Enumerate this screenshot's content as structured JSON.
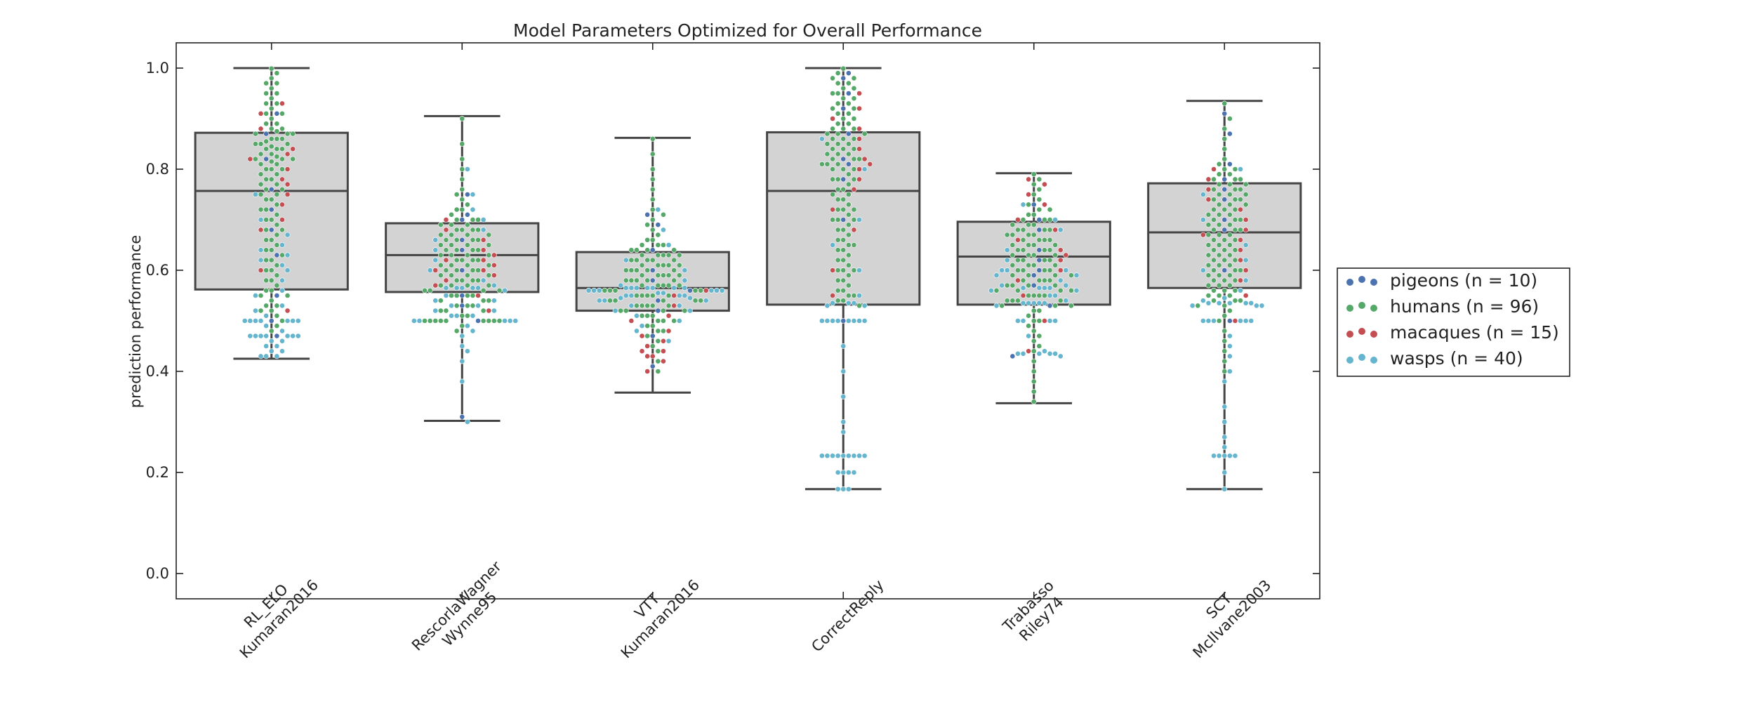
{
  "chart_data": {
    "type": "box",
    "title": "Model Parameters Optimized for Overall Performance",
    "xlabel": "",
    "ylabel": "prediction performance",
    "ylim": [
      -0.05,
      1.05
    ],
    "yticks": [
      "0.0",
      "0.2",
      "0.4",
      "0.6",
      "0.8",
      "1.0"
    ],
    "grid": false,
    "legend_position": "right",
    "categories": [
      [
        "RL_ELO",
        "Kumaran2016"
      ],
      [
        "RescorlaWagner",
        "Wynne95"
      ],
      [
        "VTT",
        "Kumaran2016"
      ],
      [
        "CorrectReply"
      ],
      [
        "Trabasso",
        "Riley74"
      ],
      [
        "SCT",
        "McIlvane2003"
      ]
    ],
    "boxes": [
      {
        "whisker_low": 0.425,
        "q1": 0.562,
        "median": 0.757,
        "q3": 0.872,
        "whisker_high": 1.0
      },
      {
        "whisker_low": 0.302,
        "q1": 0.557,
        "median": 0.63,
        "q3": 0.693,
        "whisker_high": 0.905
      },
      {
        "whisker_low": 0.358,
        "q1": 0.52,
        "median": 0.565,
        "q3": 0.636,
        "whisker_high": 0.862
      },
      {
        "whisker_low": 0.167,
        "q1": 0.532,
        "median": 0.757,
        "q3": 0.873,
        "whisker_high": 1.0
      },
      {
        "whisker_low": 0.337,
        "q1": 0.532,
        "median": 0.627,
        "q3": 0.696,
        "whisker_high": 0.792
      },
      {
        "whisker_low": 0.167,
        "q1": 0.565,
        "median": 0.675,
        "q3": 0.772,
        "whisker_high": 0.935
      }
    ],
    "series": [
      {
        "name": "pigeons (n = 10)",
        "color": "#4c72b0",
        "values": [
          [
            0.91,
            0.87,
            0.82,
            0.76,
            0.72,
            0.68,
            0.63,
            0.55,
            0.5,
            0.47
          ],
          [
            0.75,
            0.71,
            0.7,
            0.66,
            0.64,
            0.6,
            0.55,
            0.53,
            0.5,
            0.31
          ],
          [
            0.71,
            0.69,
            0.64,
            0.6,
            0.58,
            0.56,
            0.54,
            0.52,
            0.47,
            0.41
          ],
          [
            0.99,
            0.98,
            0.95,
            0.92,
            0.87,
            0.82,
            0.81,
            0.78,
            0.7,
            0.5
          ],
          [
            0.73,
            0.7,
            0.68,
            0.64,
            0.62,
            0.6,
            0.59,
            0.57,
            0.53,
            0.43
          ],
          [
            0.91,
            0.87,
            0.81,
            0.78,
            0.76,
            0.74,
            0.7,
            0.68,
            0.6,
            0.5
          ]
        ]
      },
      {
        "name": "humans (n = 96)",
        "color": "#55a868",
        "values": [
          [
            0.999,
            0.99,
            0.98,
            0.97,
            0.96,
            0.95,
            0.94,
            0.93,
            0.92,
            0.91,
            0.9,
            0.89,
            0.88,
            0.875,
            0.87,
            0.86,
            0.855,
            0.85,
            0.845,
            0.84,
            0.83,
            0.825,
            0.82,
            0.815,
            0.81,
            0.8,
            0.79,
            0.78,
            0.77,
            0.76,
            0.75,
            0.74,
            0.73,
            0.72,
            0.71,
            0.7,
            0.69,
            0.68,
            0.67,
            0.66,
            0.65,
            0.64,
            0.63,
            0.62,
            0.61,
            0.6,
            0.59,
            0.58,
            0.57,
            0.56,
            0.55,
            0.54,
            0.53,
            0.52,
            0.51,
            0.5,
            0.49,
            0.48,
            0.97,
            0.95,
            0.93,
            0.91,
            0.89,
            0.87,
            0.86,
            0.85,
            0.84,
            0.83,
            0.82,
            0.81,
            0.8,
            0.78,
            0.76,
            0.75,
            0.74,
            0.72,
            0.7,
            0.68,
            0.66,
            0.64,
            0.62,
            0.6,
            0.58,
            0.56,
            0.55,
            0.53,
            0.52,
            0.88,
            0.87,
            0.86,
            0.85,
            0.84,
            0.82,
            0.8,
            0.79,
            0.77
          ],
          [
            0.9,
            0.85,
            0.82,
            0.8,
            0.78,
            0.76,
            0.75,
            0.74,
            0.73,
            0.72,
            0.71,
            0.7,
            0.7,
            0.69,
            0.69,
            0.68,
            0.68,
            0.67,
            0.67,
            0.66,
            0.66,
            0.65,
            0.65,
            0.64,
            0.64,
            0.63,
            0.63,
            0.62,
            0.62,
            0.61,
            0.61,
            0.6,
            0.6,
            0.59,
            0.59,
            0.58,
            0.58,
            0.57,
            0.57,
            0.56,
            0.56,
            0.55,
            0.55,
            0.54,
            0.54,
            0.53,
            0.53,
            0.52,
            0.52,
            0.51,
            0.5,
            0.5,
            0.5,
            0.5,
            0.5,
            0.5,
            0.5,
            0.5,
            0.49,
            0.48,
            0.72,
            0.7,
            0.69,
            0.68,
            0.67,
            0.66,
            0.65,
            0.64,
            0.63,
            0.62,
            0.61,
            0.6,
            0.59,
            0.58,
            0.57,
            0.56,
            0.55,
            0.54,
            0.53,
            0.52,
            0.51,
            0.5,
            0.68,
            0.67,
            0.66,
            0.65,
            0.64,
            0.63,
            0.62,
            0.61,
            0.6,
            0.59,
            0.58,
            0.57,
            0.56,
            0.55
          ],
          [
            0.86,
            0.83,
            0.8,
            0.78,
            0.76,
            0.74,
            0.72,
            0.71,
            0.7,
            0.69,
            0.68,
            0.67,
            0.66,
            0.65,
            0.65,
            0.64,
            0.64,
            0.63,
            0.63,
            0.62,
            0.62,
            0.61,
            0.61,
            0.6,
            0.6,
            0.59,
            0.59,
            0.58,
            0.58,
            0.57,
            0.57,
            0.56,
            0.56,
            0.55,
            0.55,
            0.54,
            0.54,
            0.53,
            0.53,
            0.52,
            0.52,
            0.51,
            0.51,
            0.5,
            0.5,
            0.49,
            0.49,
            0.48,
            0.48,
            0.47,
            0.46,
            0.45,
            0.44,
            0.42,
            0.4,
            0.66,
            0.65,
            0.64,
            0.63,
            0.62,
            0.61,
            0.6,
            0.59,
            0.58,
            0.57,
            0.56,
            0.55,
            0.54,
            0.53,
            0.52,
            0.51,
            0.5,
            0.64,
            0.63,
            0.62,
            0.61,
            0.6,
            0.59,
            0.58,
            0.57,
            0.56,
            0.55,
            0.54,
            0.53,
            0.52,
            0.63,
            0.62,
            0.61,
            0.6,
            0.59,
            0.58,
            0.57,
            0.56,
            0.55,
            0.54,
            0.53
          ],
          [
            0.999,
            0.99,
            0.98,
            0.97,
            0.96,
            0.95,
            0.94,
            0.93,
            0.92,
            0.91,
            0.9,
            0.89,
            0.88,
            0.87,
            0.86,
            0.85,
            0.84,
            0.83,
            0.82,
            0.81,
            0.8,
            0.79,
            0.78,
            0.77,
            0.76,
            0.75,
            0.74,
            0.73,
            0.72,
            0.71,
            0.7,
            0.69,
            0.68,
            0.67,
            0.66,
            0.65,
            0.64,
            0.63,
            0.62,
            0.61,
            0.6,
            0.59,
            0.58,
            0.57,
            0.56,
            0.55,
            0.54,
            0.53,
            0.98,
            0.96,
            0.94,
            0.92,
            0.9,
            0.88,
            0.87,
            0.86,
            0.85,
            0.84,
            0.83,
            0.82,
            0.81,
            0.8,
            0.78,
            0.76,
            0.74,
            0.72,
            0.7,
            0.68,
            0.66,
            0.64,
            0.62,
            0.6,
            0.58,
            0.56,
            0.54,
            0.97,
            0.95,
            0.93,
            0.91,
            0.89,
            0.88,
            0.87,
            0.86,
            0.85,
            0.84,
            0.83,
            0.82,
            0.81,
            0.8,
            0.78,
            0.75,
            0.72,
            0.7,
            0.65,
            0.6,
            0.55
          ],
          [
            0.79,
            0.78,
            0.77,
            0.76,
            0.75,
            0.74,
            0.73,
            0.72,
            0.71,
            0.7,
            0.7,
            0.69,
            0.69,
            0.68,
            0.68,
            0.67,
            0.67,
            0.66,
            0.66,
            0.65,
            0.65,
            0.64,
            0.64,
            0.63,
            0.63,
            0.62,
            0.62,
            0.61,
            0.61,
            0.6,
            0.6,
            0.59,
            0.59,
            0.58,
            0.58,
            0.57,
            0.57,
            0.56,
            0.56,
            0.55,
            0.55,
            0.54,
            0.54,
            0.53,
            0.53,
            0.52,
            0.51,
            0.5,
            0.5,
            0.49,
            0.48,
            0.47,
            0.46,
            0.45,
            0.44,
            0.42,
            0.4,
            0.38,
            0.36,
            0.34,
            0.72,
            0.71,
            0.7,
            0.69,
            0.68,
            0.67,
            0.66,
            0.65,
            0.64,
            0.63,
            0.62,
            0.61,
            0.6,
            0.59,
            0.58,
            0.57,
            0.56,
            0.55,
            0.54,
            0.53,
            0.52,
            0.68,
            0.67,
            0.66,
            0.65,
            0.64,
            0.63,
            0.62,
            0.61,
            0.6,
            0.59,
            0.58,
            0.57,
            0.56,
            0.55,
            0.54
          ],
          [
            0.93,
            0.9,
            0.88,
            0.86,
            0.84,
            0.82,
            0.81,
            0.8,
            0.79,
            0.78,
            0.78,
            0.77,
            0.77,
            0.76,
            0.76,
            0.75,
            0.75,
            0.74,
            0.74,
            0.73,
            0.73,
            0.72,
            0.72,
            0.71,
            0.71,
            0.7,
            0.7,
            0.69,
            0.69,
            0.68,
            0.68,
            0.67,
            0.67,
            0.66,
            0.66,
            0.65,
            0.65,
            0.64,
            0.64,
            0.63,
            0.63,
            0.62,
            0.62,
            0.61,
            0.61,
            0.6,
            0.6,
            0.59,
            0.59,
            0.58,
            0.58,
            0.57,
            0.57,
            0.56,
            0.56,
            0.55,
            0.55,
            0.54,
            0.54,
            0.53,
            0.52,
            0.51,
            0.5,
            0.48,
            0.46,
            0.44,
            0.42,
            0.4,
            0.8,
            0.79,
            0.78,
            0.77,
            0.76,
            0.75,
            0.74,
            0.73,
            0.72,
            0.71,
            0.7,
            0.69,
            0.68,
            0.67,
            0.66,
            0.65,
            0.64,
            0.63,
            0.62,
            0.61,
            0.6,
            0.59,
            0.58,
            0.57,
            0.56,
            0.55,
            0.54,
            0.53
          ]
        ]
      },
      {
        "name": "macaques (n = 15)",
        "color": "#c44e52",
        "values": [
          [
            0.93,
            0.91,
            0.88,
            0.84,
            0.83,
            0.82,
            0.8,
            0.78,
            0.77,
            0.75,
            0.73,
            0.7,
            0.68,
            0.6,
            0.52
          ],
          [
            0.7,
            0.68,
            0.66,
            0.64,
            0.63,
            0.62,
            0.62,
            0.61,
            0.6,
            0.6,
            0.59,
            0.58,
            0.57,
            0.55,
            0.52
          ],
          [
            0.56,
            0.55,
            0.53,
            0.51,
            0.5,
            0.48,
            0.47,
            0.46,
            0.45,
            0.44,
            0.44,
            0.43,
            0.43,
            0.42,
            0.4
          ],
          [
            0.95,
            0.92,
            0.9,
            0.88,
            0.86,
            0.84,
            0.82,
            0.81,
            0.8,
            0.78,
            0.76,
            0.72,
            0.68,
            0.6,
            0.55
          ],
          [
            0.78,
            0.77,
            0.75,
            0.73,
            0.7,
            0.68,
            0.66,
            0.64,
            0.63,
            0.62,
            0.6,
            0.58,
            0.55,
            0.5,
            0.44
          ],
          [
            0.8,
            0.78,
            0.76,
            0.74,
            0.72,
            0.7,
            0.68,
            0.67,
            0.66,
            0.64,
            0.62,
            0.6,
            0.58,
            0.55,
            0.5
          ]
        ]
      },
      {
        "name": "wasps (n = 40)",
        "color": "#64b5cd",
        "values": [
          [
            0.75,
            0.7,
            0.67,
            0.65,
            0.64,
            0.63,
            0.62,
            0.61,
            0.6,
            0.58,
            0.56,
            0.55,
            0.53,
            0.52,
            0.51,
            0.5,
            0.5,
            0.5,
            0.5,
            0.5,
            0.5,
            0.5,
            0.49,
            0.48,
            0.47,
            0.47,
            0.47,
            0.47,
            0.47,
            0.47,
            0.47,
            0.46,
            0.46,
            0.45,
            0.45,
            0.44,
            0.44,
            0.43,
            0.43,
            0.43
          ],
          [
            0.8,
            0.75,
            0.72,
            0.7,
            0.68,
            0.66,
            0.64,
            0.62,
            0.6,
            0.58,
            0.57,
            0.565,
            0.565,
            0.565,
            0.565,
            0.565,
            0.56,
            0.55,
            0.54,
            0.54,
            0.53,
            0.53,
            0.52,
            0.52,
            0.51,
            0.51,
            0.51,
            0.5,
            0.5,
            0.5,
            0.5,
            0.5,
            0.49,
            0.48,
            0.47,
            0.45,
            0.44,
            0.42,
            0.38,
            0.3
          ],
          [
            0.72,
            0.68,
            0.65,
            0.62,
            0.6,
            0.58,
            0.57,
            0.565,
            0.565,
            0.565,
            0.565,
            0.565,
            0.565,
            0.565,
            0.56,
            0.56,
            0.56,
            0.56,
            0.56,
            0.56,
            0.555,
            0.555,
            0.55,
            0.55,
            0.55,
            0.55,
            0.545,
            0.545,
            0.54,
            0.54,
            0.54,
            0.53,
            0.53,
            0.52,
            0.52,
            0.51,
            0.5,
            0.49,
            0.48,
            0.46
          ],
          [
            0.86,
            0.8,
            0.7,
            0.65,
            0.6,
            0.55,
            0.535,
            0.535,
            0.535,
            0.53,
            0.53,
            0.5,
            0.5,
            0.5,
            0.5,
            0.5,
            0.5,
            0.5,
            0.5,
            0.45,
            0.4,
            0.35,
            0.3,
            0.28,
            0.233,
            0.233,
            0.233,
            0.233,
            0.233,
            0.233,
            0.233,
            0.233,
            0.233,
            0.2,
            0.2,
            0.2,
            0.2,
            0.167,
            0.167,
            0.167
          ],
          [
            0.73,
            0.7,
            0.68,
            0.64,
            0.62,
            0.6,
            0.6,
            0.6,
            0.59,
            0.59,
            0.58,
            0.57,
            0.57,
            0.565,
            0.565,
            0.565,
            0.565,
            0.56,
            0.56,
            0.55,
            0.55,
            0.54,
            0.535,
            0.535,
            0.535,
            0.535,
            0.535,
            0.53,
            0.5,
            0.5,
            0.5,
            0.5,
            0.47,
            0.44,
            0.435,
            0.435,
            0.435,
            0.435,
            0.435,
            0.43
          ],
          [
            0.8,
            0.75,
            0.7,
            0.65,
            0.62,
            0.6,
            0.58,
            0.56,
            0.545,
            0.54,
            0.535,
            0.535,
            0.535,
            0.535,
            0.535,
            0.53,
            0.53,
            0.53,
            0.5,
            0.5,
            0.5,
            0.5,
            0.5,
            0.5,
            0.47,
            0.45,
            0.43,
            0.4,
            0.38,
            0.33,
            0.3,
            0.27,
            0.25,
            0.233,
            0.233,
            0.233,
            0.233,
            0.233,
            0.2,
            0.167
          ]
        ]
      }
    ]
  }
}
